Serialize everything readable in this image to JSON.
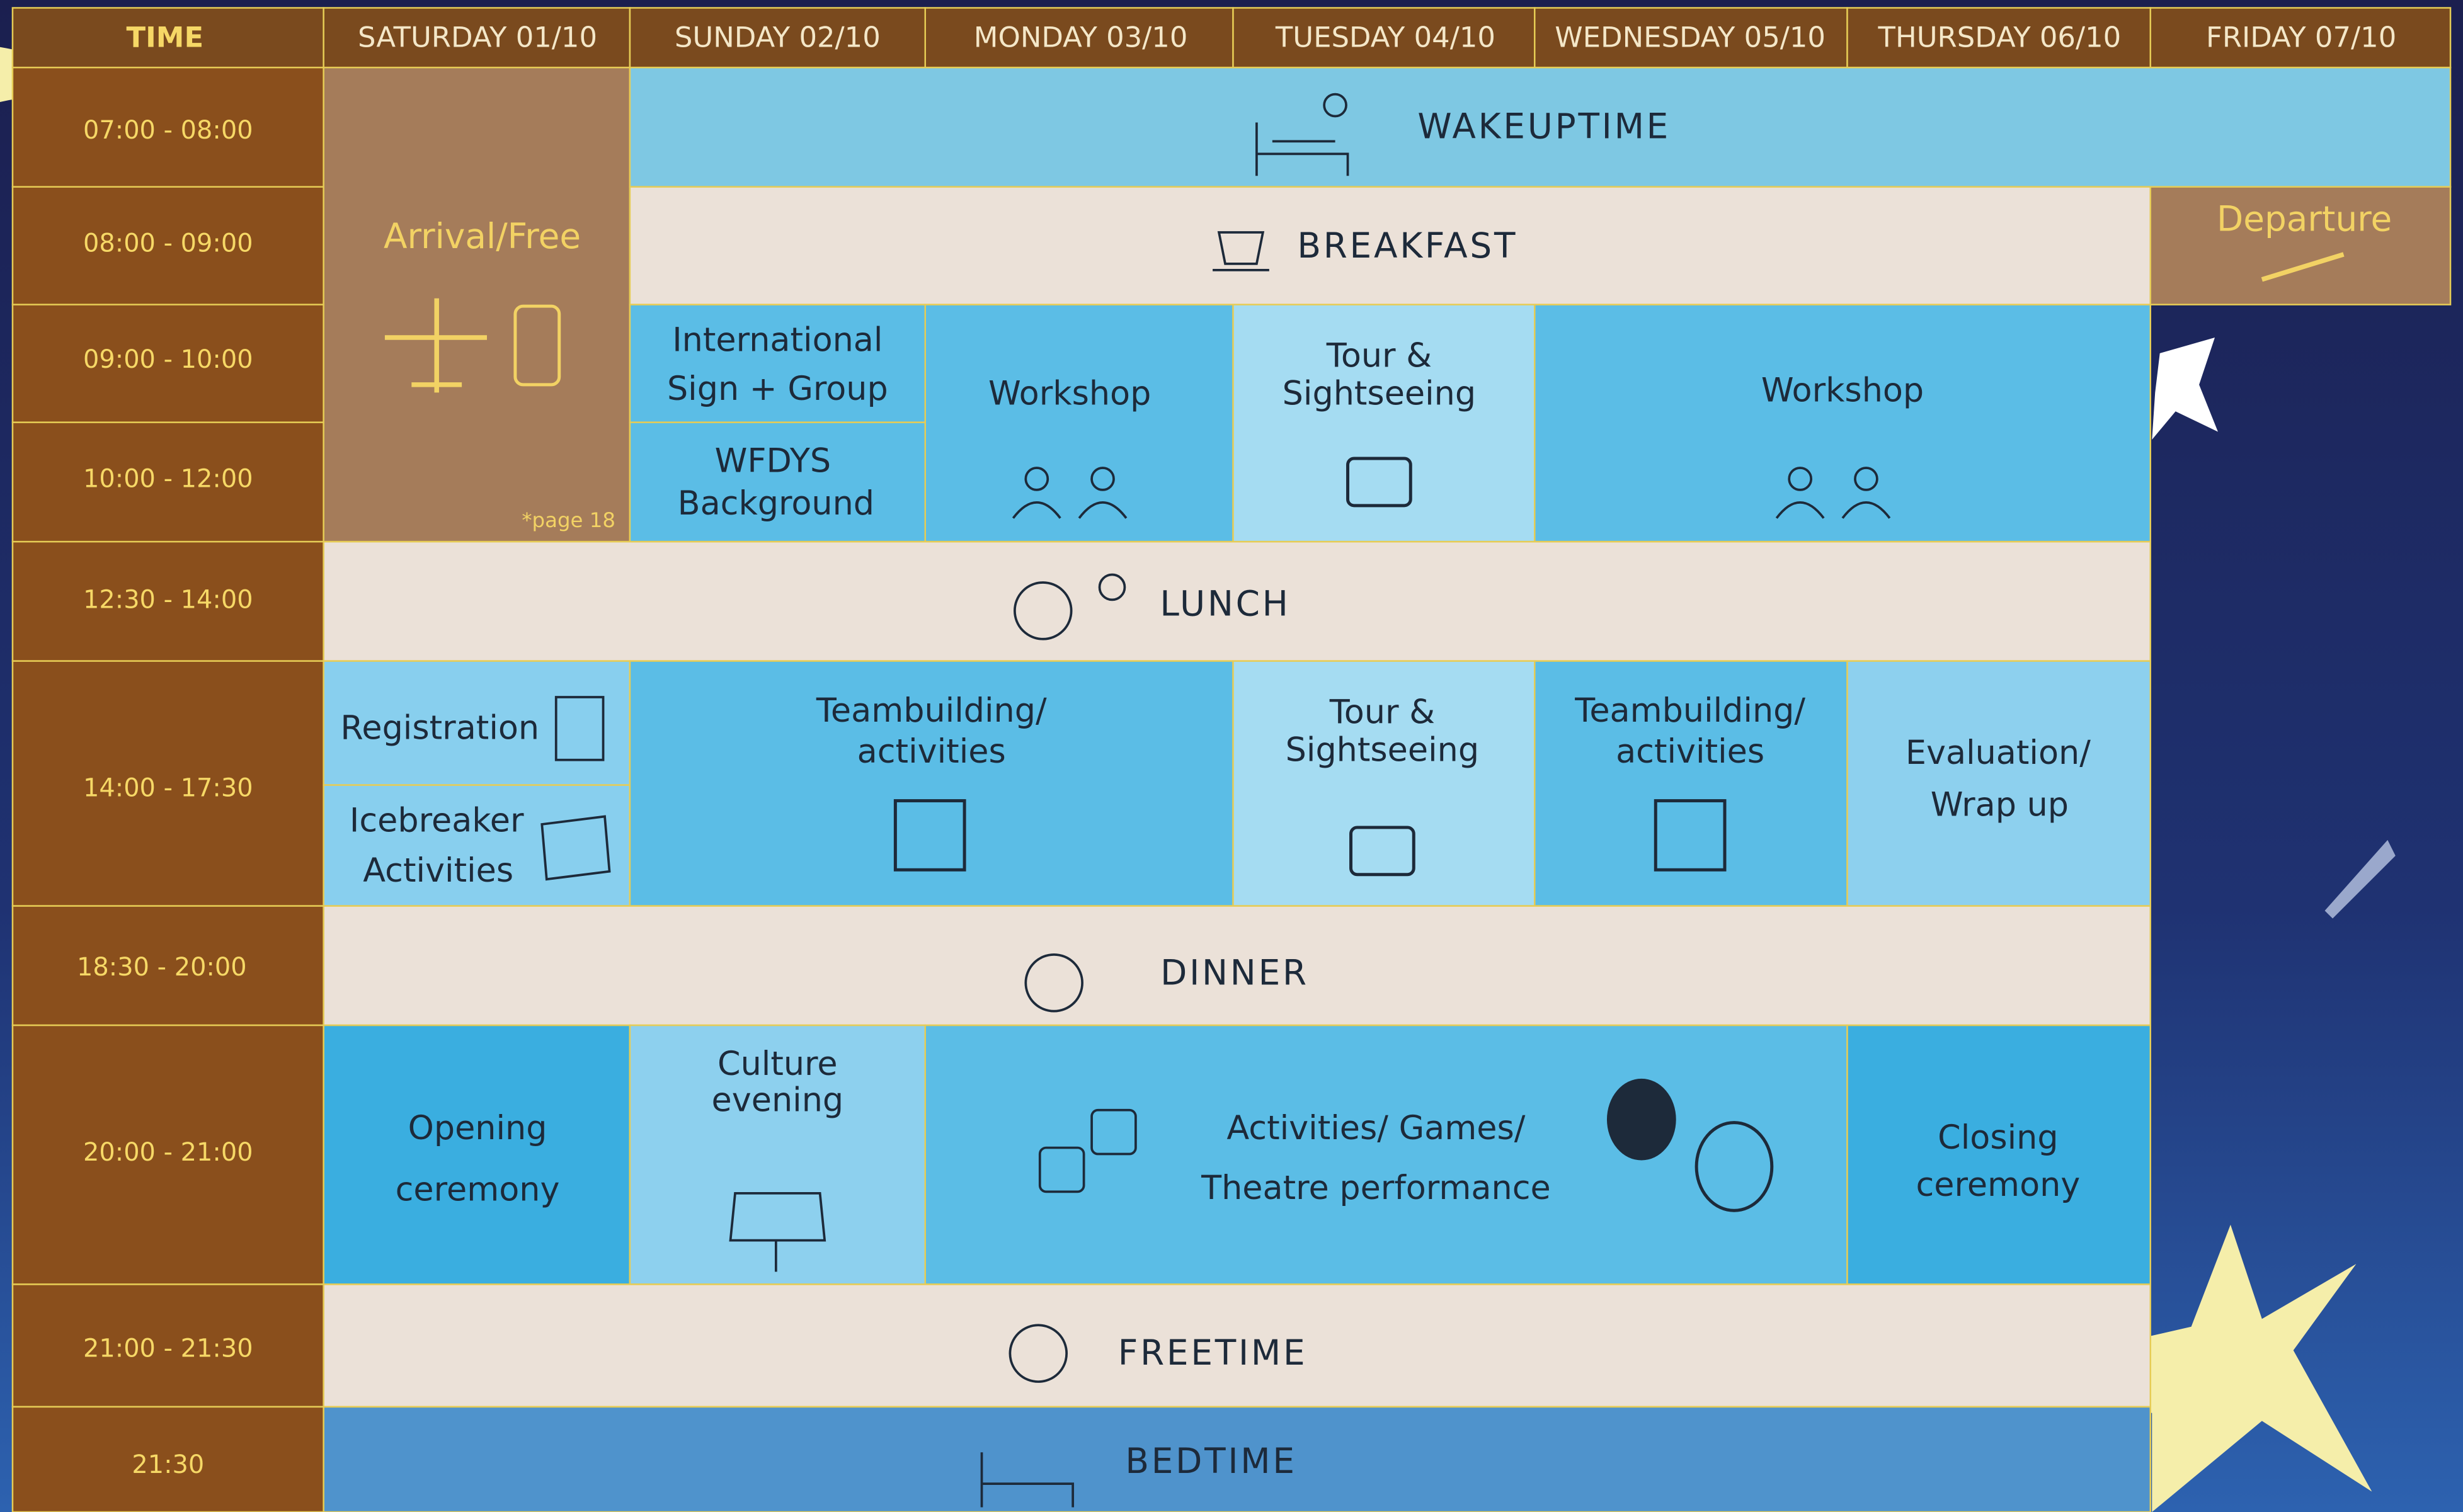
{
  "header": {
    "time_label": "TIME",
    "days": [
      "SATURDAY 01/10",
      "SUNDAY 02/10",
      "MONDAY 03/10",
      "TUESDAY 04/10",
      "WEDNESDAY 05/10",
      "THURSDAY 06/10",
      "FRIDAY 07/10"
    ]
  },
  "time_slots": [
    "07:00 - 08:00",
    "08:00 - 09:00",
    "09:00 - 10:00",
    "10:00 - 12:00",
    "12:30 - 14:00",
    "14:00 - 17:30",
    "18:30 - 20:00",
    "20:00 - 21:00",
    "21:00 - 21:30",
    "21:30"
  ],
  "events": [
    {
      "lines": [
        "Arrival/Free"
      ]
    },
    {
      "lines": [
        "WAKEUPTIME"
      ]
    },
    {
      "lines": [
        "BREAKFAST"
      ]
    },
    {
      "lines": [
        "Departure"
      ]
    },
    {
      "lines": [
        "International",
        "Sign + Group"
      ]
    },
    {
      "lines": [
        "WFDYS",
        "Background"
      ]
    },
    {
      "lines": [
        "Workshop"
      ]
    },
    {
      "lines": [
        "Tour &",
        "Sightseeing"
      ]
    },
    {
      "lines": [
        "Workshop"
      ]
    },
    {
      "lines": [
        "LUNCH"
      ]
    },
    {
      "lines": [
        "Registration"
      ]
    },
    {
      "lines": [
        "Icebreaker",
        "Activities"
      ]
    },
    {
      "lines": [
        "Teambuilding/",
        "activities"
      ]
    },
    {
      "lines": [
        "Tour &",
        "Sightseeing"
      ]
    },
    {
      "lines": [
        "Teambuilding/",
        "activities"
      ]
    },
    {
      "lines": [
        "Evaluation/",
        "Wrap up"
      ]
    },
    {
      "lines": [
        "DINNER"
      ]
    },
    {
      "lines": [
        "Opening",
        "ceremony"
      ]
    },
    {
      "lines": [
        "Culture",
        "evening"
      ]
    },
    {
      "lines": [
        "Activities/ Games/",
        "Theatre performance"
      ]
    },
    {
      "lines": [
        "Closing",
        "ceremony"
      ]
    },
    {
      "lines": [
        "FREETIME"
      ]
    },
    {
      "lines": [
        "BEDTIME"
      ]
    }
  ],
  "note": "*page 18"
}
